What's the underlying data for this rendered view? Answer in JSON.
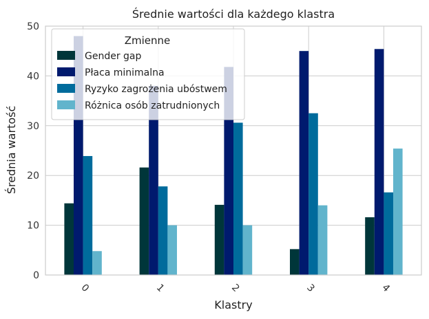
{
  "chart_data": {
    "type": "bar",
    "title": "Średnie wartości dla każdego klastra",
    "xlabel": "Klastry",
    "ylabel": "Średnia wartość",
    "categories": [
      "0",
      "1",
      "2",
      "3",
      "4"
    ],
    "ylim": [
      0,
      50
    ],
    "yticks": [
      0,
      10,
      20,
      30,
      40,
      50
    ],
    "grid": true,
    "legend": {
      "title": "Zmienne",
      "placement": "top-left"
    },
    "series": [
      {
        "name": "Gender gap",
        "color": "#00363a",
        "values": [
          14.4,
          21.6,
          14.1,
          5.2,
          11.6
        ]
      },
      {
        "name": "Płaca minimalna",
        "color": "#001a6e",
        "values": [
          48.0,
          38.0,
          41.8,
          45.0,
          45.4
        ]
      },
      {
        "name": "Ryzyko zagrożenia ubóstwem",
        "color": "#006b9c",
        "values": [
          23.9,
          17.8,
          30.6,
          32.5,
          16.6
        ]
      },
      {
        "name": "Różnica osób zatrudnionych",
        "color": "#61b4cc",
        "values": [
          4.8,
          10.0,
          10.0,
          14.0,
          25.4
        ]
      }
    ]
  }
}
